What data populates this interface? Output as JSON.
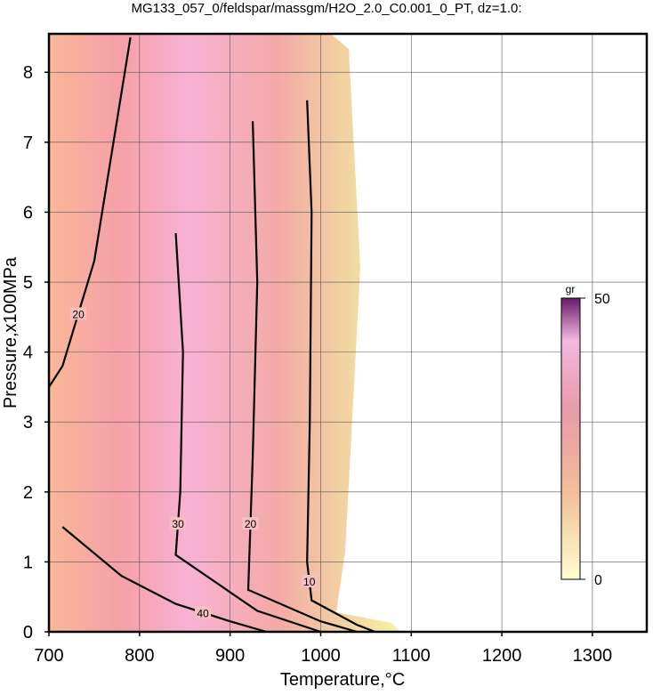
{
  "chart_data": {
    "type": "contour",
    "title": "MG133_057_0/feldspar/massgm/H2O_2.0_C0.001_0_PT, dz=1.0:",
    "x_label": "Temperature,°C",
    "y_label": "Pressure,x100MPa",
    "xlim": [
      700,
      1360
    ],
    "ylim": [
      0,
      8.55
    ],
    "xticks": [
      700,
      800,
      900,
      1000,
      1100,
      1200,
      1300
    ],
    "yticks": [
      0,
      1,
      2,
      3,
      4,
      5,
      6,
      7,
      8
    ],
    "grid": true,
    "colorbar": {
      "label": "gr",
      "lim": [
        0,
        50
      ],
      "ticks": [
        0,
        50
      ]
    },
    "contours": [
      {
        "level": 10,
        "x": [
          985,
          990,
          988,
          985,
          990,
          1040,
          1060
        ],
        "y": [
          7.6,
          6.0,
          3.0,
          1.0,
          0.45,
          0.1,
          0
        ]
      },
      {
        "level": 20,
        "x": [
          925,
          930,
          925,
          920,
          1000,
          1040
        ],
        "y": [
          7.3,
          5.0,
          2.5,
          0.6,
          0.15,
          0
        ]
      },
      {
        "level": 30,
        "x": [
          840,
          848,
          845,
          840,
          930,
          1000
        ],
        "y": [
          5.7,
          4.0,
          2.0,
          1.1,
          0.3,
          0
        ]
      },
      {
        "level": 40,
        "x": [
          715,
          780,
          840,
          900,
          940
        ],
        "y": [
          1.5,
          0.8,
          0.4,
          0.15,
          0
        ]
      },
      {
        "level": 20,
        "x": [
          700,
          715,
          750,
          790
        ],
        "y": [
          3.5,
          3.8,
          5.3,
          8.5
        ]
      }
    ]
  }
}
